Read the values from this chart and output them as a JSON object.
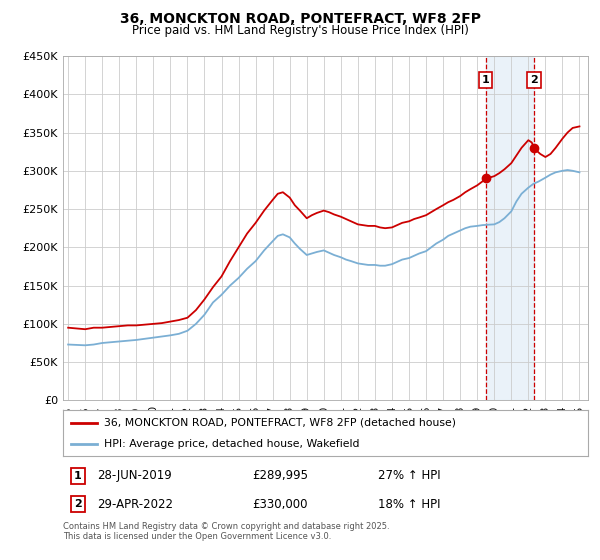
{
  "title": "36, MONCKTON ROAD, PONTEFRACT, WF8 2FP",
  "subtitle": "Price paid vs. HM Land Registry's House Price Index (HPI)",
  "ylim": [
    0,
    450000
  ],
  "yticks": [
    0,
    50000,
    100000,
    150000,
    200000,
    250000,
    300000,
    350000,
    400000,
    450000
  ],
  "ytick_labels": [
    "£0",
    "£50K",
    "£100K",
    "£150K",
    "£200K",
    "£250K",
    "£300K",
    "£350K",
    "£400K",
    "£450K"
  ],
  "xlim_start": 1994.7,
  "xlim_end": 2025.5,
  "xticks": [
    1995,
    1996,
    1997,
    1998,
    1999,
    2000,
    2001,
    2002,
    2003,
    2004,
    2005,
    2006,
    2007,
    2008,
    2009,
    2010,
    2011,
    2012,
    2013,
    2014,
    2015,
    2016,
    2017,
    2018,
    2019,
    2020,
    2021,
    2022,
    2023,
    2024,
    2025
  ],
  "red_line_color": "#cc0000",
  "blue_line_color": "#7bafd4",
  "marker1_date": 2019.49,
  "marker1_value": 289995,
  "marker1_label": "1",
  "marker1_date_str": "28-JUN-2019",
  "marker1_price_str": "£289,995",
  "marker1_hpi_str": "27% ↑ HPI",
  "marker2_date": 2022.33,
  "marker2_value": 330000,
  "marker2_label": "2",
  "marker2_date_str": "29-APR-2022",
  "marker2_price_str": "£330,000",
  "marker2_hpi_str": "18% ↑ HPI",
  "legend_label_red": "36, MONCKTON ROAD, PONTEFRACT, WF8 2FP (detached house)",
  "legend_label_blue": "HPI: Average price, detached house, Wakefield",
  "footnote": "Contains HM Land Registry data © Crown copyright and database right 2025.\nThis data is licensed under the Open Government Licence v3.0.",
  "background_color": "#ffffff",
  "grid_color": "#cccccc",
  "shaded_region_start": 2019.49,
  "shaded_region_end": 2022.33,
  "red_series": [
    [
      1995.0,
      95000
    ],
    [
      1995.5,
      94000
    ],
    [
      1996.0,
      93000
    ],
    [
      1996.5,
      95000
    ],
    [
      1997.0,
      95000
    ],
    [
      1997.5,
      96000
    ],
    [
      1998.0,
      97000
    ],
    [
      1998.5,
      98000
    ],
    [
      1999.0,
      98000
    ],
    [
      1999.5,
      99000
    ],
    [
      2000.0,
      100000
    ],
    [
      2000.5,
      101000
    ],
    [
      2001.0,
      103000
    ],
    [
      2001.5,
      105000
    ],
    [
      2002.0,
      108000
    ],
    [
      2002.5,
      118000
    ],
    [
      2003.0,
      132000
    ],
    [
      2003.5,
      148000
    ],
    [
      2004.0,
      162000
    ],
    [
      2004.5,
      182000
    ],
    [
      2005.0,
      200000
    ],
    [
      2005.5,
      218000
    ],
    [
      2006.0,
      232000
    ],
    [
      2006.5,
      248000
    ],
    [
      2007.0,
      262000
    ],
    [
      2007.3,
      270000
    ],
    [
      2007.6,
      272000
    ],
    [
      2008.0,
      265000
    ],
    [
      2008.3,
      255000
    ],
    [
      2008.6,
      248000
    ],
    [
      2009.0,
      238000
    ],
    [
      2009.3,
      242000
    ],
    [
      2009.6,
      245000
    ],
    [
      2010.0,
      248000
    ],
    [
      2010.3,
      246000
    ],
    [
      2010.6,
      243000
    ],
    [
      2011.0,
      240000
    ],
    [
      2011.3,
      237000
    ],
    [
      2011.6,
      234000
    ],
    [
      2012.0,
      230000
    ],
    [
      2012.3,
      229000
    ],
    [
      2012.6,
      228000
    ],
    [
      2013.0,
      228000
    ],
    [
      2013.3,
      226000
    ],
    [
      2013.6,
      225000
    ],
    [
      2014.0,
      226000
    ],
    [
      2014.3,
      229000
    ],
    [
      2014.6,
      232000
    ],
    [
      2015.0,
      234000
    ],
    [
      2015.3,
      237000
    ],
    [
      2015.6,
      239000
    ],
    [
      2016.0,
      242000
    ],
    [
      2016.3,
      246000
    ],
    [
      2016.6,
      250000
    ],
    [
      2017.0,
      255000
    ],
    [
      2017.3,
      259000
    ],
    [
      2017.6,
      262000
    ],
    [
      2018.0,
      267000
    ],
    [
      2018.3,
      272000
    ],
    [
      2018.6,
      276000
    ],
    [
      2019.0,
      281000
    ],
    [
      2019.3,
      286000
    ],
    [
      2019.49,
      289995
    ],
    [
      2019.7,
      291000
    ],
    [
      2020.0,
      293000
    ],
    [
      2020.3,
      297000
    ],
    [
      2020.6,
      302000
    ],
    [
      2021.0,
      310000
    ],
    [
      2021.3,
      320000
    ],
    [
      2021.6,
      330000
    ],
    [
      2022.0,
      340000
    ],
    [
      2022.2,
      337000
    ],
    [
      2022.33,
      330000
    ],
    [
      2022.5,
      326000
    ],
    [
      2022.7,
      322000
    ],
    [
      2023.0,
      318000
    ],
    [
      2023.3,
      322000
    ],
    [
      2023.6,
      330000
    ],
    [
      2024.0,
      342000
    ],
    [
      2024.3,
      350000
    ],
    [
      2024.6,
      356000
    ],
    [
      2025.0,
      358000
    ]
  ],
  "blue_series": [
    [
      1995.0,
      73000
    ],
    [
      1995.5,
      72500
    ],
    [
      1996.0,
      72000
    ],
    [
      1996.5,
      73000
    ],
    [
      1997.0,
      75000
    ],
    [
      1997.5,
      76000
    ],
    [
      1998.0,
      77000
    ],
    [
      1998.5,
      78000
    ],
    [
      1999.0,
      79000
    ],
    [
      1999.5,
      80500
    ],
    [
      2000.0,
      82000
    ],
    [
      2000.5,
      83500
    ],
    [
      2001.0,
      85000
    ],
    [
      2001.5,
      87000
    ],
    [
      2002.0,
      91000
    ],
    [
      2002.5,
      100000
    ],
    [
      2003.0,
      112000
    ],
    [
      2003.5,
      128000
    ],
    [
      2004.0,
      138000
    ],
    [
      2004.5,
      150000
    ],
    [
      2005.0,
      160000
    ],
    [
      2005.5,
      172000
    ],
    [
      2006.0,
      182000
    ],
    [
      2006.5,
      196000
    ],
    [
      2007.0,
      208000
    ],
    [
      2007.3,
      215000
    ],
    [
      2007.6,
      217000
    ],
    [
      2008.0,
      213000
    ],
    [
      2008.3,
      205000
    ],
    [
      2008.6,
      198000
    ],
    [
      2009.0,
      190000
    ],
    [
      2009.3,
      192000
    ],
    [
      2009.6,
      194000
    ],
    [
      2010.0,
      196000
    ],
    [
      2010.3,
      193000
    ],
    [
      2010.6,
      190000
    ],
    [
      2011.0,
      187000
    ],
    [
      2011.3,
      184000
    ],
    [
      2011.6,
      182000
    ],
    [
      2012.0,
      179000
    ],
    [
      2012.3,
      178000
    ],
    [
      2012.6,
      177000
    ],
    [
      2013.0,
      177000
    ],
    [
      2013.3,
      176000
    ],
    [
      2013.6,
      176000
    ],
    [
      2014.0,
      178000
    ],
    [
      2014.3,
      181000
    ],
    [
      2014.6,
      184000
    ],
    [
      2015.0,
      186000
    ],
    [
      2015.3,
      189000
    ],
    [
      2015.6,
      192000
    ],
    [
      2016.0,
      195000
    ],
    [
      2016.3,
      200000
    ],
    [
      2016.6,
      205000
    ],
    [
      2017.0,
      210000
    ],
    [
      2017.3,
      215000
    ],
    [
      2017.6,
      218000
    ],
    [
      2018.0,
      222000
    ],
    [
      2018.3,
      225000
    ],
    [
      2018.6,
      227000
    ],
    [
      2019.0,
      228000
    ],
    [
      2019.3,
      229000
    ],
    [
      2019.6,
      229500
    ],
    [
      2020.0,
      230000
    ],
    [
      2020.3,
      233000
    ],
    [
      2020.6,
      238000
    ],
    [
      2021.0,
      247000
    ],
    [
      2021.3,
      260000
    ],
    [
      2021.6,
      270000
    ],
    [
      2022.0,
      278000
    ],
    [
      2022.3,
      283000
    ],
    [
      2022.6,
      286000
    ],
    [
      2023.0,
      291000
    ],
    [
      2023.3,
      295000
    ],
    [
      2023.6,
      298000
    ],
    [
      2024.0,
      300000
    ],
    [
      2024.3,
      301000
    ],
    [
      2024.6,
      300000
    ],
    [
      2025.0,
      298000
    ]
  ]
}
